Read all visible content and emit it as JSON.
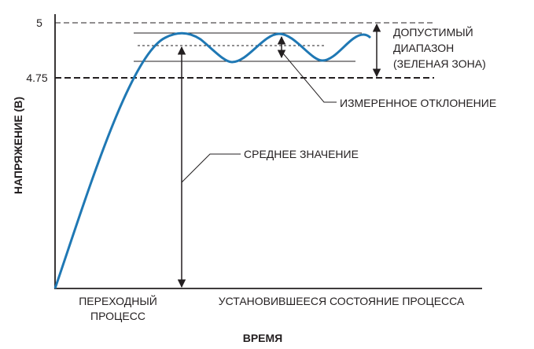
{
  "axes": {
    "y_label": "НАПРЯЖЕНИЕ (В)",
    "x_label": "ВРЕМЯ",
    "y_tick_top": "5",
    "y_tick_bottom": "4.75"
  },
  "phases": {
    "transient_line1": "ПЕРЕХОДНЫЙ",
    "transient_line2": "ПРОЦЕСС",
    "steady_state": "УСТАНОВИВШЕЕСЯ СОСТОЯНИЕ ПРОЦЕССА"
  },
  "annotations": {
    "allowed_range_line1": "ДОПУСТИМЫЙ",
    "allowed_range_line2": "ДИАПАЗОН",
    "allowed_range_line3": "(ЗЕЛЕНАЯ ЗОНА)",
    "measured_deviation": "ИЗМЕРЕННОЕ ОТКЛОНЕНИЕ",
    "mean_value": "СРЕДНЕЕ ЗНАЧЕНИЕ"
  },
  "colors": {
    "signal": "#1f78b4",
    "ink": "#231f20"
  }
}
